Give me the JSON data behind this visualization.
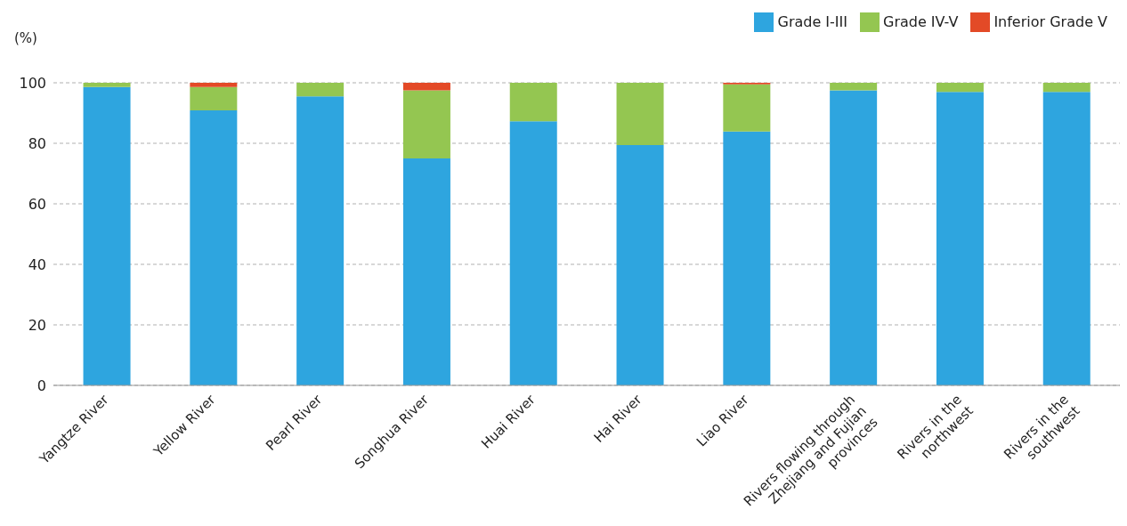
{
  "chart_data": {
    "type": "bar",
    "stacked": true,
    "ylabel": "(%)",
    "categories": [
      "Yangtze River",
      "Yellow River",
      "Pearl River",
      "Songhua River",
      "Huai River",
      "Hai River",
      "Liao River",
      "Rivers flowing through Zhejiang and Fujian provinces",
      "Rivers in the northwest",
      "Rivers in the southwest"
    ],
    "series": [
      {
        "name": "Grade I-III",
        "color": "#2ea5df",
        "values": [
          98.6,
          90.9,
          95.5,
          75.0,
          87.3,
          79.4,
          83.9,
          97.5,
          97.0,
          97.0
        ]
      },
      {
        "name": "Grade IV-V",
        "color": "#94c651",
        "values": [
          1.4,
          7.7,
          4.5,
          22.5,
          12.7,
          20.6,
          15.6,
          2.5,
          3.0,
          3.0
        ]
      },
      {
        "name": "Inferior Grade V",
        "color": "#e34a27",
        "values": [
          0,
          1.4,
          0,
          2.5,
          0,
          0,
          0.5,
          0,
          0,
          0
        ]
      }
    ],
    "ylim": [
      0,
      100
    ],
    "yticks": [
      0,
      20,
      40,
      60,
      80,
      100
    ],
    "grid": "y",
    "legend": "top right"
  }
}
